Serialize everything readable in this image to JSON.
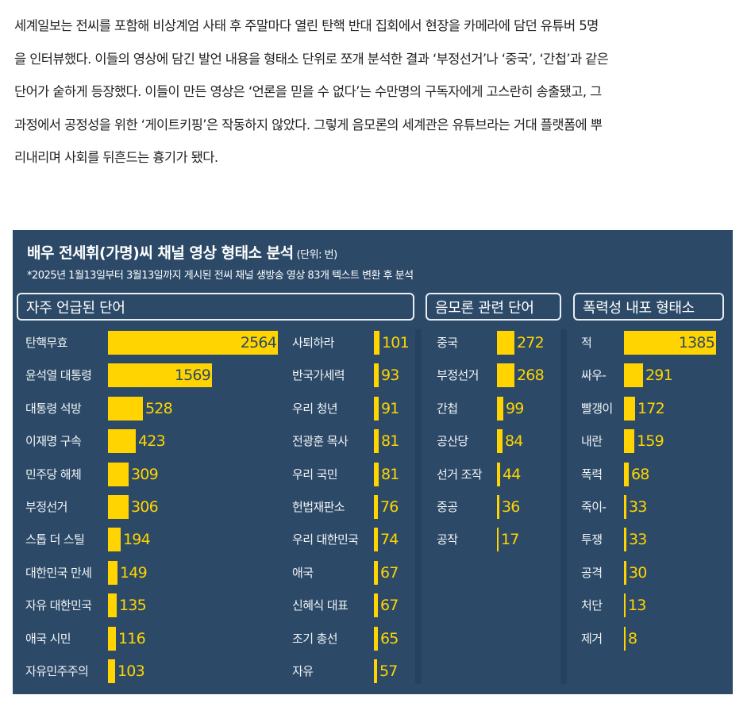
{
  "article": {
    "lines": [
      "세계일보는 전씨를 포함해 비상계엄 사태 후 주말마다 열린 탄핵 반대 집회에서 현장을 카메라에 담던 유튜버 5명",
      "을 인터뷰했다. 이들의 영상에 담긴 발언 내용을 형태소 단위로 쪼개 분석한 결과 ‘부정선거’나 ‘중국’, ‘간첩’과 같은",
      "단어가 숱하게 등장했다. 이들이 만든 영상은 ‘언론을 믿을 수 없다’는 수만명의 구독자에게 고스란히 송출됐고, 그",
      "과정에서 공정성을 위한 ‘게이트키핑’은 작동하지 않았다. 그렇게 음모론의 세계관은 유튜브라는 거대 플랫폼에 뿌",
      "리내리며 사회를 뒤흔드는 흉기가 됐다."
    ]
  },
  "chart": {
    "title": "배우 전세휘(가명)씨 채널 영상 형태소 분석",
    "unit": "(단위: 번)",
    "subtitle": "*2025년 1월13일부터 3월13일까지 게시된 전씨 채널 생방송 영상 83개 텍스트 변환 후 분석",
    "sections": [
      {
        "label": "자주 언급된 단어"
      },
      {
        "label": "음모론 관련 단어"
      },
      {
        "label": "폭력성 내포 형태소"
      }
    ],
    "colors": {
      "background": "#2c4a68",
      "bar": "#ffd400",
      "text": "#ffffff"
    }
  },
  "chart_data": {
    "type": "bar",
    "orientation": "horizontal",
    "title": "배우 전세휘(가명)씨 채널 영상 형태소 분석",
    "subtitle": "*2025년 1월13일부터 3월13일까지 게시된 전씨 채널 생방송 영상 83개 텍스트 변환 후 분석",
    "unit": "번",
    "groups": [
      {
        "name": "자주 언급된 단어",
        "categories": [
          "탄핵무효",
          "윤석열 대통령",
          "대통령 석방",
          "이재명 구속",
          "민주당 해체",
          "부정선거",
          "스톱 더 스틸",
          "대한민국 만세",
          "자유 대한민국",
          "애국 시민",
          "자유민주주의",
          "사퇴하라",
          "반국가세력",
          "우리 청년",
          "전광훈 목사",
          "우리 국민",
          "헌법재판소",
          "우리 대한민국",
          "애국",
          "신혜식 대표",
          "조기 총선",
          "자유"
        ],
        "values": [
          2564,
          1569,
          528,
          423,
          309,
          306,
          194,
          149,
          135,
          116,
          103,
          101,
          93,
          91,
          81,
          81,
          76,
          74,
          67,
          67,
          65,
          57
        ]
      },
      {
        "name": "음모론 관련 단어",
        "categories": [
          "중국",
          "부정선거",
          "간첩",
          "공산당",
          "선거 조작",
          "중공",
          "공작"
        ],
        "values": [
          272,
          268,
          99,
          84,
          44,
          36,
          17
        ]
      },
      {
        "name": "폭력성 내포 형태소",
        "categories": [
          "적",
          "싸우-",
          "빨갱이",
          "내란",
          "폭력",
          "죽이-",
          "투쟁",
          "공격",
          "처단",
          "제거"
        ],
        "values": [
          1385,
          291,
          172,
          159,
          68,
          33,
          33,
          30,
          13,
          8
        ]
      }
    ]
  }
}
